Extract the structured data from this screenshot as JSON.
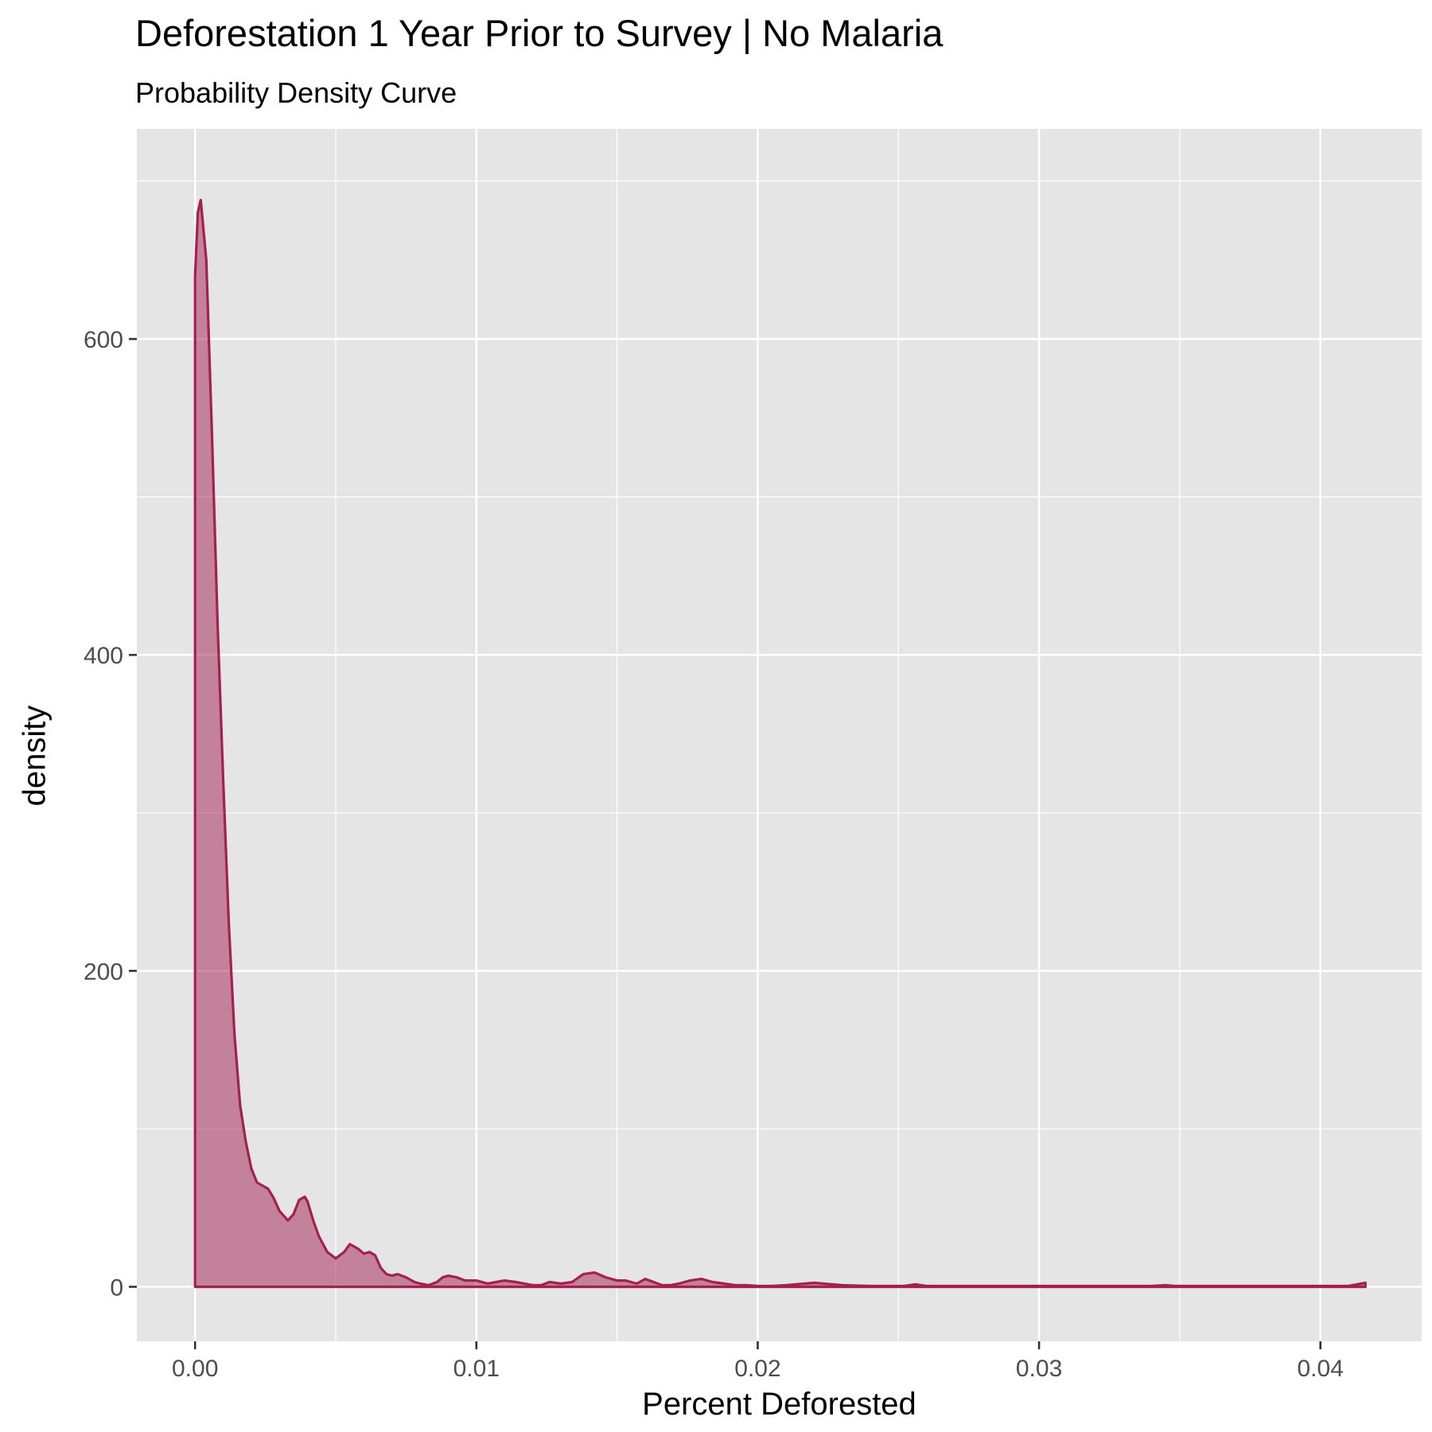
{
  "chart_data": {
    "type": "area",
    "title": "Deforestation 1 Year Prior to Survey | No Malaria",
    "subtitle": "Probability Density Curve",
    "xlabel": "Percent Deforested",
    "ylabel": "density",
    "xlim": [
      -0.00207,
      0.0436
    ],
    "ylim": [
      -34.5,
      733
    ],
    "x_ticks": [
      0.0,
      0.01,
      0.02,
      0.03,
      0.04
    ],
    "x_tick_labels": [
      "0.00",
      "0.01",
      "0.02",
      "0.03",
      "0.04"
    ],
    "y_ticks": [
      0,
      200,
      400,
      600
    ],
    "y_tick_labels": [
      "0",
      "200",
      "400",
      "600"
    ],
    "grid": true,
    "colors": {
      "line": "#a3204f",
      "fill": "#a3204f",
      "panel": "#e5e5e5",
      "grid": "#ffffff"
    },
    "series": [
      {
        "x": [
          0.0,
          0.0001,
          0.0002,
          0.0004,
          0.0006,
          0.0008,
          0.001,
          0.0012,
          0.0014,
          0.0016,
          0.0018,
          0.002,
          0.0022,
          0.0024,
          0.0026,
          0.0028,
          0.003,
          0.0033,
          0.0035,
          0.0037,
          0.0039,
          0.004,
          0.0042,
          0.0044,
          0.0047,
          0.005,
          0.0053,
          0.0055,
          0.0058,
          0.006,
          0.0062,
          0.0064,
          0.0066,
          0.0068,
          0.007,
          0.0072,
          0.0075,
          0.0078,
          0.008,
          0.0083,
          0.0086,
          0.0088,
          0.009,
          0.0093,
          0.0096,
          0.01,
          0.0104,
          0.0107,
          0.011,
          0.0114,
          0.0117,
          0.012,
          0.0123,
          0.0126,
          0.013,
          0.0134,
          0.0138,
          0.0142,
          0.0146,
          0.015,
          0.0153,
          0.0157,
          0.016,
          0.0163,
          0.0166,
          0.0169,
          0.0172,
          0.0176,
          0.018,
          0.0184,
          0.0188,
          0.0192,
          0.0196,
          0.02,
          0.0205,
          0.021,
          0.022,
          0.023,
          0.024,
          0.0244,
          0.0248,
          0.0252,
          0.0256,
          0.026,
          0.027,
          0.028,
          0.029,
          0.0294,
          0.0298,
          0.0305,
          0.032,
          0.034,
          0.0345,
          0.0348,
          0.0352,
          0.036,
          0.038,
          0.04,
          0.041,
          0.0413,
          0.0416
        ],
        "y": [
          640,
          680,
          688,
          650,
          540,
          420,
          320,
          230,
          160,
          115,
          92,
          75,
          66,
          64,
          62,
          56,
          48,
          42,
          46,
          55,
          57,
          54,
          42,
          32,
          22,
          18,
          22,
          27,
          24,
          21,
          22,
          20,
          12,
          8,
          7,
          8,
          6,
          3,
          2,
          1,
          3,
          6,
          7,
          6,
          4,
          4,
          2,
          3,
          4,
          3,
          2,
          1,
          1,
          3,
          2,
          3,
          8,
          9,
          6,
          4,
          4,
          2,
          5,
          3,
          1,
          1,
          2,
          4,
          5,
          3,
          2,
          1,
          1,
          0.5,
          0.5,
          1,
          2.5,
          1,
          0.5,
          0.5,
          0.5,
          0.5,
          1.5,
          0.5,
          0.5,
          0.5,
          0.5,
          0.5,
          0.5,
          0.5,
          0.5,
          0.5,
          1,
          0.5,
          0.5,
          0.5,
          0.5,
          0.5,
          0.5,
          1.5,
          2.5
        ]
      }
    ]
  }
}
